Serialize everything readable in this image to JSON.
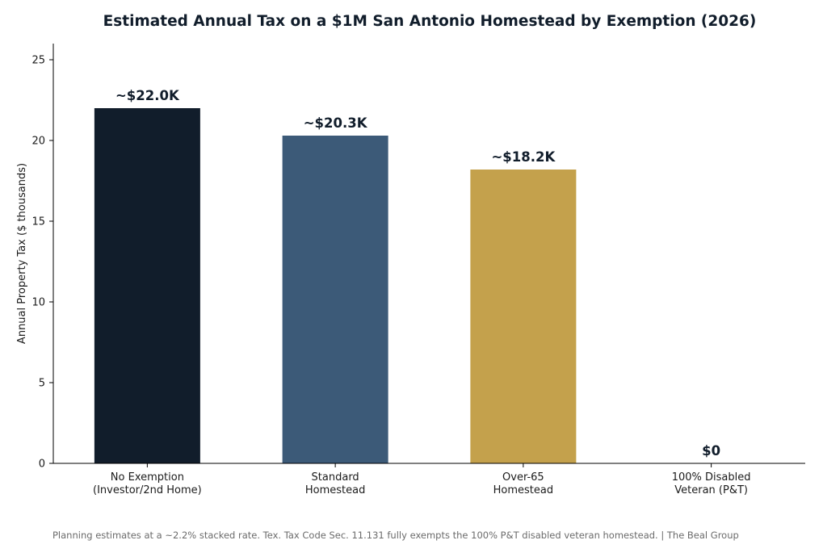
{
  "chart_data": {
    "type": "bar",
    "title": "Estimated Annual Tax on a $1M San Antonio Homestead by Exemption (2026)",
    "xlabel": "",
    "ylabel": "Annual Property Tax ($ thousands)",
    "ylim": [
      0,
      26
    ],
    "yticks": [
      0,
      5,
      10,
      15,
      20,
      25
    ],
    "grid": false,
    "categories": [
      [
        "No Exemption",
        "(Investor/2nd Home)"
      ],
      [
        "Standard",
        "Homestead"
      ],
      [
        "Over-65",
        "Homestead"
      ],
      [
        "100% Disabled",
        "Veteran (P&T)"
      ]
    ],
    "values": [
      22.0,
      20.3,
      18.2,
      0
    ],
    "value_labels": [
      "~$22.0K",
      "~$20.3K",
      "~$18.2K",
      "$0"
    ],
    "colors": [
      "#111d2b",
      "#3c5a78",
      "#c4a14c",
      "#cccccc"
    ]
  },
  "footnote": "Planning estimates at a ~2.2% stacked rate. Tex. Tax Code Sec. 11.131 fully exempts the 100% P&T disabled veteran homestead.  |  The Beal Group"
}
